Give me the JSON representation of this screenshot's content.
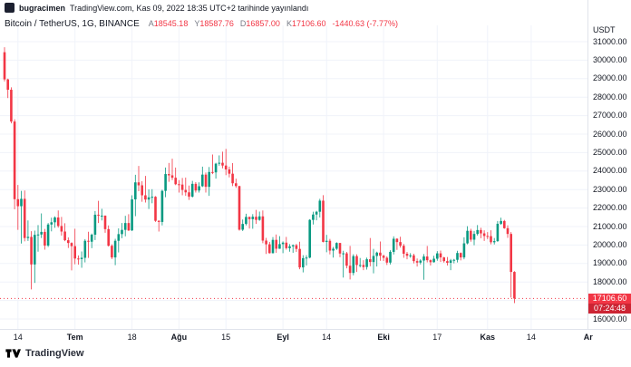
{
  "attribution": {
    "user": "bugracimen",
    "text": "TradingView.com, Kas 09, 2022 18:35 UTC+2 tarihinde yayınlandı"
  },
  "header": {
    "title": "Bitcoin / TetherUS, 1G, BINANCE",
    "ohlc": [
      {
        "label": "A",
        "value": "18545.18"
      },
      {
        "label": "Y",
        "value": "18587.76"
      },
      {
        "label": "D",
        "value": "16857.00"
      },
      {
        "label": "K",
        "value": "17106.60"
      }
    ],
    "change": "-1440.63 (-7.77%)"
  },
  "price_scale": {
    "currency": "USDT",
    "last_price": "17106.60",
    "countdown": "07:24:48"
  },
  "footer": {
    "brand": "TradingView"
  },
  "colors": {
    "up": "#089981",
    "down": "#F23645",
    "grid": "#F0F3FA",
    "axis_line": "#E0E3EB",
    "axis_text": "#131722",
    "badge": "#F23645"
  },
  "chart_data": {
    "type": "candlestick",
    "title": "Bitcoin / TetherUS, 1G, BINANCE",
    "symbol": "BTCUSDT",
    "interval": "1G",
    "x_axis": {
      "unit": "day",
      "start_date": "2022-06-10",
      "ticks": [
        {
          "label": "14",
          "day": 4,
          "major": false
        },
        {
          "label": "Tem",
          "day": 21,
          "major": true
        },
        {
          "label": "18",
          "day": 38,
          "major": false
        },
        {
          "label": "Ağu",
          "day": 52,
          "major": true
        },
        {
          "label": "15",
          "day": 66,
          "major": false
        },
        {
          "label": "Eyl",
          "day": 83,
          "major": true
        },
        {
          "label": "14",
          "day": 96,
          "major": false
        },
        {
          "label": "Eki",
          "day": 113,
          "major": true
        },
        {
          "label": "17",
          "day": 129,
          "major": false
        },
        {
          "label": "Kas",
          "day": 144,
          "major": true
        },
        {
          "label": "14",
          "day": 157,
          "major": false
        },
        {
          "label": "Ar",
          "day": 174,
          "major": true
        }
      ]
    },
    "y_axis": {
      "currency": "USDT",
      "label_min": 16000,
      "label_max": 31000,
      "step": 1000,
      "visible_range": [
        15750,
        31750
      ]
    },
    "last": {
      "open": 18545.18,
      "high": 18587.76,
      "low": 16857.0,
      "close": 17106.6,
      "change": -1440.63,
      "change_pct": -7.77,
      "countdown": "07:24:48"
    },
    "candles": [
      [
        30430,
        30700,
        28850,
        28960
      ],
      [
        28960,
        29000,
        27950,
        28400
      ],
      [
        28400,
        28530,
        26580,
        26680
      ],
      [
        26680,
        26800,
        21930,
        22480
      ],
      [
        22480,
        23250,
        20820,
        22100
      ],
      [
        22100,
        22930,
        20080,
        22500
      ],
      [
        22500,
        22950,
        20200,
        20380
      ],
      [
        20380,
        21330,
        20220,
        20440
      ],
      [
        20440,
        20750,
        17600,
        18950
      ],
      [
        18950,
        20780,
        17950,
        20550
      ],
      [
        20550,
        21080,
        19640,
        20570
      ],
      [
        20570,
        21710,
        20380,
        20710
      ],
      [
        20710,
        20870,
        19750,
        19970
      ],
      [
        19970,
        21190,
        19890,
        21110
      ],
      [
        21110,
        21480,
        20740,
        21230
      ],
      [
        21230,
        21550,
        20930,
        21490
      ],
      [
        21490,
        21870,
        20940,
        21030
      ],
      [
        21030,
        21520,
        20510,
        20730
      ],
      [
        20730,
        21180,
        20210,
        20260
      ],
      [
        20260,
        20410,
        19840,
        20110
      ],
      [
        20110,
        20150,
        18630,
        19940
      ],
      [
        19940,
        20880,
        18960,
        19270
      ],
      [
        19270,
        19440,
        18940,
        19240
      ],
      [
        19240,
        19650,
        18770,
        19310
      ],
      [
        19310,
        20320,
        19060,
        20230
      ],
      [
        20230,
        20720,
        19300,
        20180
      ],
      [
        20180,
        20620,
        19830,
        20560
      ],
      [
        20560,
        21840,
        20270,
        21640
      ],
      [
        21640,
        22390,
        21190,
        21590
      ],
      [
        21590,
        21960,
        21330,
        21590
      ],
      [
        21590,
        21600,
        20660,
        20860
      ],
      [
        20860,
        21060,
        19920,
        19960
      ],
      [
        19960,
        20040,
        19240,
        19330
      ],
      [
        19330,
        20340,
        18910,
        20230
      ],
      [
        20230,
        20900,
        19600,
        20590
      ],
      [
        20590,
        21190,
        20370,
        20820
      ],
      [
        20820,
        21580,
        20470,
        21190
      ],
      [
        21190,
        21670,
        20760,
        20790
      ],
      [
        20790,
        22690,
        20760,
        22470
      ],
      [
        22470,
        23800,
        21560,
        23390
      ],
      [
        23390,
        24280,
        22910,
        23230
      ],
      [
        23230,
        23450,
        22340,
        22690
      ],
      [
        22690,
        23740,
        22300,
        22460
      ],
      [
        22460,
        23010,
        21950,
        22580
      ],
      [
        22580,
        23020,
        22260,
        22610
      ],
      [
        22610,
        22650,
        21250,
        21310
      ],
      [
        21310,
        21340,
        20730,
        21250
      ],
      [
        21250,
        22990,
        21060,
        22930
      ],
      [
        22930,
        24190,
        22590,
        23840
      ],
      [
        23840,
        24440,
        23420,
        23770
      ],
      [
        23770,
        24670,
        23510,
        23640
      ],
      [
        23640,
        24190,
        23240,
        23290
      ],
      [
        23290,
        23510,
        22840,
        23270
      ],
      [
        23270,
        23630,
        22690,
        22980
      ],
      [
        22980,
        23650,
        22660,
        22850
      ],
      [
        22850,
        23220,
        22440,
        22620
      ],
      [
        22620,
        23470,
        22570,
        23310
      ],
      [
        23310,
        23400,
        22840,
        22950
      ],
      [
        22950,
        23390,
        22840,
        23180
      ],
      [
        23180,
        24240,
        23140,
        23810
      ],
      [
        23810,
        23920,
        22840,
        23150
      ],
      [
        23150,
        24220,
        22660,
        23950
      ],
      [
        23950,
        24900,
        23840,
        23930
      ],
      [
        23930,
        24450,
        23590,
        24400
      ],
      [
        24400,
        24850,
        24290,
        24450
      ],
      [
        24450,
        25050,
        24150,
        24300
      ],
      [
        24300,
        25200,
        23780,
        24090
      ],
      [
        24090,
        24240,
        23660,
        23860
      ],
      [
        23860,
        24430,
        23190,
        23340
      ],
      [
        23340,
        23590,
        23090,
        23190
      ],
      [
        23190,
        23200,
        20780,
        20830
      ],
      [
        20830,
        21380,
        20760,
        21140
      ],
      [
        21140,
        21690,
        21060,
        21520
      ],
      [
        21520,
        21540,
        20890,
        21400
      ],
      [
        21400,
        21670,
        20880,
        21530
      ],
      [
        21530,
        21900,
        21140,
        21360
      ],
      [
        21360,
        21810,
        21310,
        21550
      ],
      [
        21550,
        21870,
        20100,
        20240
      ],
      [
        20240,
        20390,
        19520,
        20040
      ],
      [
        20040,
        20170,
        19540,
        19560
      ],
      [
        19560,
        20430,
        19540,
        20280
      ],
      [
        20280,
        20570,
        19580,
        19800
      ],
      [
        19800,
        20480,
        19790,
        20050
      ],
      [
        20050,
        20200,
        19560,
        20130
      ],
      [
        20130,
        20440,
        19750,
        19830
      ],
      [
        19830,
        20050,
        19640,
        19930
      ],
      [
        19930,
        20030,
        19580,
        19990
      ],
      [
        19990,
        20060,
        19630,
        19790
      ],
      [
        19790,
        20180,
        18690,
        18790
      ],
      [
        18790,
        19450,
        18520,
        19290
      ],
      [
        19290,
        19450,
        18890,
        19320
      ],
      [
        19320,
        21400,
        19280,
        21360
      ],
      [
        21360,
        21800,
        21110,
        21650
      ],
      [
        21650,
        21850,
        21340,
        21800
      ],
      [
        21800,
        22500,
        21490,
        22400
      ],
      [
        22400,
        22700,
        20140,
        20170
      ],
      [
        20170,
        20550,
        19610,
        20230
      ],
      [
        20230,
        20330,
        19490,
        19700
      ],
      [
        19700,
        19900,
        19320,
        19800
      ],
      [
        19800,
        20150,
        19730,
        20110
      ],
      [
        20110,
        20120,
        19340,
        19540
      ],
      [
        19540,
        19690,
        18240,
        19550
      ],
      [
        19550,
        19630,
        18740,
        18880
      ],
      [
        18880,
        19950,
        18140,
        18490
      ],
      [
        18490,
        19500,
        18360,
        19400
      ],
      [
        19400,
        19500,
        18540,
        18920
      ],
      [
        18920,
        19300,
        18790,
        18920
      ],
      [
        18920,
        19180,
        18640,
        18810
      ],
      [
        18810,
        19320,
        18670,
        19230
      ],
      [
        19230,
        20380,
        18850,
        19080
      ],
      [
        19080,
        19790,
        18470,
        19410
      ],
      [
        19410,
        19640,
        18840,
        19590
      ],
      [
        19590,
        20190,
        19150,
        19420
      ],
      [
        19420,
        19480,
        19140,
        19310
      ],
      [
        19310,
        19390,
        18920,
        19050
      ],
      [
        19050,
        19720,
        18950,
        19630
      ],
      [
        19630,
        20470,
        19490,
        20340
      ],
      [
        20340,
        20370,
        19740,
        20160
      ],
      [
        20160,
        20450,
        19860,
        19960
      ],
      [
        19960,
        20060,
        19310,
        19530
      ],
      [
        19530,
        19630,
        19230,
        19420
      ],
      [
        19420,
        19560,
        19310,
        19440
      ],
      [
        19440,
        19530,
        19010,
        19130
      ],
      [
        19130,
        19270,
        18840,
        19050
      ],
      [
        19050,
        19230,
        18950,
        19160
      ],
      [
        19160,
        19510,
        18120,
        19380
      ],
      [
        19380,
        19950,
        19060,
        19180
      ],
      [
        19180,
        19220,
        18890,
        19070
      ],
      [
        19070,
        19420,
        19050,
        19260
      ],
      [
        19260,
        19670,
        19150,
        19550
      ],
      [
        19550,
        19700,
        19080,
        19330
      ],
      [
        19330,
        19360,
        19050,
        19130
      ],
      [
        19130,
        19350,
        18890,
        19040
      ],
      [
        19040,
        19250,
        18640,
        19170
      ],
      [
        19170,
        19250,
        19010,
        19200
      ],
      [
        19200,
        19690,
        19060,
        19570
      ],
      [
        19570,
        19600,
        19170,
        19330
      ],
      [
        19330,
        20420,
        19230,
        20090
      ],
      [
        20090,
        21020,
        20040,
        20770
      ],
      [
        20770,
        20880,
        20180,
        20290
      ],
      [
        20290,
        20760,
        19990,
        20600
      ],
      [
        20600,
        21080,
        20510,
        20810
      ],
      [
        20810,
        20930,
        20370,
        20630
      ],
      [
        20630,
        20800,
        20220,
        20490
      ],
      [
        20490,
        20700,
        20320,
        20480
      ],
      [
        20480,
        20800,
        20040,
        20150
      ],
      [
        20150,
        20380,
        20030,
        20210
      ],
      [
        20210,
        21300,
        20170,
        21150
      ],
      [
        21150,
        21480,
        21090,
        21300
      ],
      [
        21300,
        21360,
        20880,
        20910
      ],
      [
        20910,
        21070,
        20390,
        20600
      ],
      [
        20600,
        20700,
        17160,
        18545
      ],
      [
        18545,
        18588,
        16857,
        17107
      ]
    ]
  }
}
